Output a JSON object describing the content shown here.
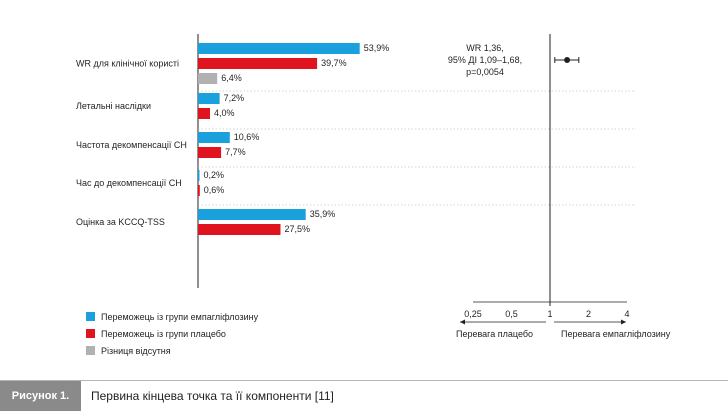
{
  "chart_data": {
    "type": "bar",
    "orientation": "horizontal",
    "unit": "%",
    "categories": [
      "WR для клінічної користі",
      "Летальні наслідки",
      "Частота декомпенсації СН",
      "Час до декомпенсації СН",
      "Оцінка за KCCQ-TSS"
    ],
    "series": [
      {
        "name": "Переможець із групи емпагліфлозину",
        "color": "#1aa0dc",
        "values": [
          53.9,
          7.2,
          10.6,
          0.2,
          35.9
        ],
        "labels": [
          "53,9%",
          "7,2%",
          "10,6%",
          "0,2%",
          "35,9%"
        ]
      },
      {
        "name": "Переможець із групи плацебо",
        "color": "#e0141e",
        "values": [
          39.7,
          4.0,
          7.7,
          0.6,
          27.5
        ],
        "labels": [
          "39,7%",
          "4,0%",
          "7,7%",
          "0,6%",
          "27,5%"
        ]
      },
      {
        "name": "Різниця відсутня",
        "color": "#b1b1b1",
        "values": [
          6.4,
          null,
          null,
          null,
          null
        ],
        "labels": [
          "6,4%",
          "",
          "",
          "",
          ""
        ]
      }
    ],
    "forest_plot": {
      "scale": "log2",
      "ticks": [
        0.25,
        0.5,
        1,
        2,
        4
      ],
      "tick_labels": [
        "0,25",
        "0,5",
        "1",
        "2",
        "4"
      ],
      "estimate": 1.36,
      "ci": [
        1.09,
        1.68
      ],
      "left_label": "Перевага плацебо",
      "right_label": "Перевага емпагліфлозину"
    }
  },
  "stats": {
    "line1": "WR 1,36,",
    "line2": "95% ДІ 1,09–1,68,",
    "line3": "p=0,0054"
  },
  "caption": {
    "label": "Рисунок 1.",
    "text": "Первина кінцева точка та її компоненти [11]"
  }
}
